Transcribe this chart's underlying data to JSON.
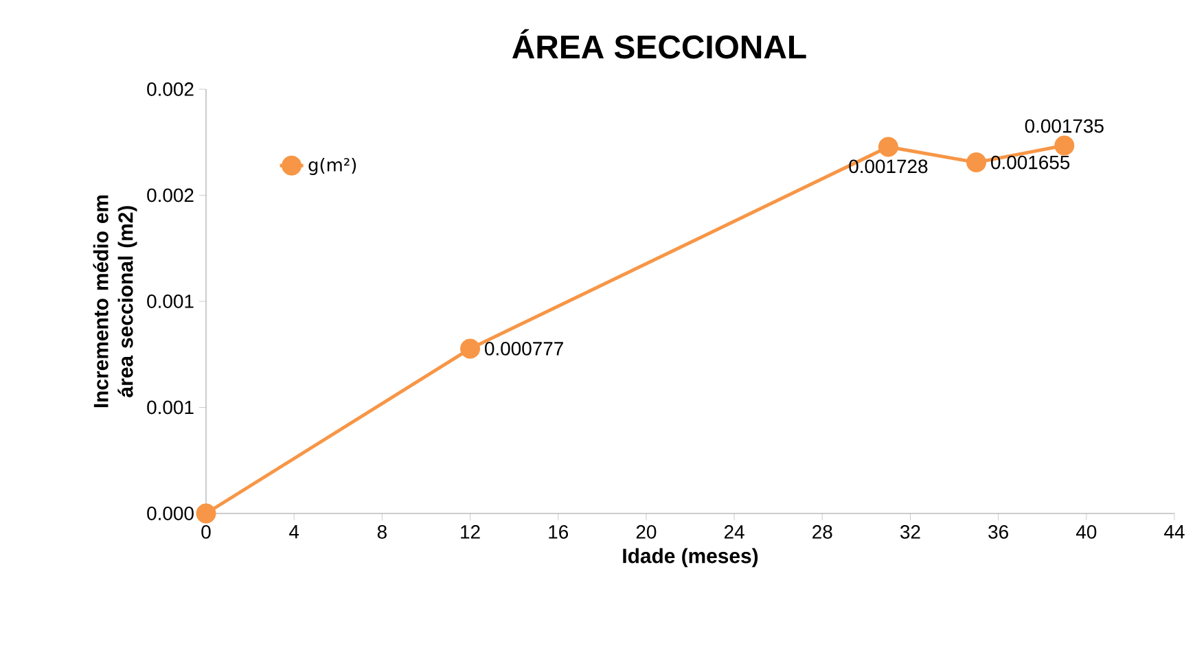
{
  "chart_data": {
    "type": "line",
    "title": "ÁREA SECCIONAL",
    "xlabel": "Idade (meses)",
    "ylabel": "Incremento médio em área seccional (m2)",
    "x": [
      0,
      12,
      31,
      35,
      39
    ],
    "series": [
      {
        "name": "g(m²)",
        "color": "#f79646",
        "values": [
          0,
          0.000777,
          0.001728,
          0.001655,
          0.001735
        ],
        "value_labels": [
          null,
          "0.000777",
          "0.001728",
          "0.001655",
          "0.001735"
        ]
      }
    ],
    "xlim": [
      0,
      44
    ],
    "xticks": [
      0,
      4,
      8,
      12,
      16,
      20,
      24,
      28,
      32,
      36,
      40,
      44
    ],
    "ylim": [
      0,
      0.002
    ],
    "yticks": [
      {
        "value": 0,
        "label": "0.000"
      },
      {
        "value": 0.0005,
        "label": "0.001"
      },
      {
        "value": 0.001,
        "label": "0.001"
      },
      {
        "value": 0.0015,
        "label": "0.002"
      },
      {
        "value": 0.002,
        "label": "0.002"
      }
    ],
    "grid": false,
    "legend": "top left",
    "marker": "circle",
    "line_style": "solid"
  }
}
